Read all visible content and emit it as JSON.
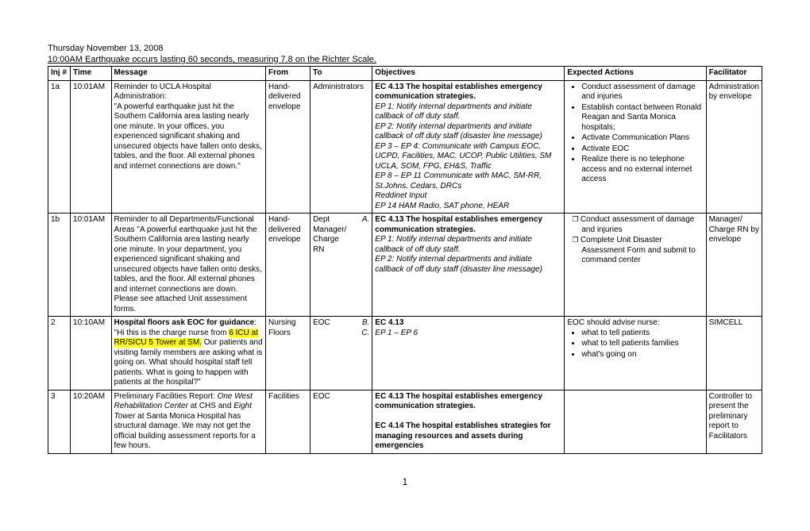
{
  "header": {
    "date_line": "Thursday November 13, 2008",
    "event_line": "10:00AM Earthquake occurs lasting 60 seconds, measuring 7.8 on the Richter Scale."
  },
  "columns": {
    "inj": "Inj #",
    "time": "Time",
    "message": "Message",
    "from": "From",
    "to": "To",
    "objectives": "Objectives",
    "actions": "Expected Actions",
    "facilitator": "Facilitator"
  },
  "rows": {
    "r1a": {
      "inj": "1a",
      "time": "10:01AM",
      "msg_line1": "Reminder to UCLA Hospital Administration:",
      "msg_body": "\"A powerful earthquake just hit the Southern California area lasting nearly one minute.  In your offices, you experienced significant shaking and unsecured objects have fallen onto desks, tables, and the floor.  All external phones and internet connections are down.\"",
      "from": "Hand-delivered envelope",
      "to": "Administrators",
      "obj_title": "EC 4.13 The hospital establishes emergency communication strategies.",
      "obj_ep1": "EP 1: Notify internal departments and initiate callback of off duty staff.",
      "obj_ep2": "EP 2: Notify internal departments and initiate callback of off duty staff (disaster line message)",
      "obj_ep3": "EP 3 – EP 4: Communicate with Campus EOC, UCPD, Facilities, MAC, UCOP, Public Utilities, SM UCLA, SOM, FPG, EH&S, Traffic",
      "obj_ep8": "EP 8 – EP 11 Communicate with MAC, SM-RR, St.Johns, Cedars, DRCs",
      "obj_reddinet": "Reddinet Input",
      "obj_ep14": "EP 14 HAM Radio, SAT phone,  HEAR",
      "act1": "Conduct assessment of damage and injuries",
      "act2": "Establish contact between Ronald Reagan and Santa Monica hospitals;",
      "act3": "Activate Communication Plans",
      "act4": "Activate EOC",
      "act5": "Realize there is no telephone access and no external internet access",
      "fac": "Administration by envelope"
    },
    "r1b": {
      "inj": "1b",
      "time": "10:01AM",
      "msg": "Reminder to all Departments/Functional Areas \"A powerful earthquake just hit the Southern California area lasting nearly one minute.  In your department, you experienced significant shaking and unsecured objects have fallen onto desks, tables, and the floor.  All external phones and internet connections are down. Please see attached Unit assessment forms.",
      "from": "Hand-delivered envelope",
      "to": "Dept Manager/ Charge RN",
      "to_letter": "A.",
      "obj_title": "EC 4.13 The hospital establishes emergency communication strategies.",
      "obj_ep1": "EP 1: Notify internal departments and initiate callback of off duty staff.",
      "obj_ep2": "EP 2: Notify internal departments and initiate callback of off duty staff (disaster line message)",
      "act1": "Conduct assessment of damage and injuries",
      "act2": "Complete Unit Disaster Assessment Form and submit to command center",
      "fac": "Manager/ Charge RN by envelope"
    },
    "r2": {
      "inj": "2",
      "time": "10:10AM",
      "msg_lead": "Hospital floors ask EOC for guidance",
      "msg_quote_a": "\"Hi this is the charge nurse from ",
      "msg_hl": "6 ICU at RR/SICU 5 Tower at SM.",
      "msg_quote_b": "  Our patients and visiting family members are asking what is going on.  What should hospital staff tell patients.  What is going to happen with patients at the hospital?\"",
      "from": "Nursing Floors",
      "to": "EOC",
      "to_letter1": "B.",
      "to_letter2": "C.",
      "obj_title": "EC 4.13",
      "obj_sub": "EP 1 – EP 6",
      "act_lead": "EOC should advise nurse:",
      "act1": "what to tell patients",
      "act2": "what to tell patients families",
      "act3": "what's going on",
      "fac": "SIMCELL"
    },
    "r3": {
      "inj": "3",
      "time": "10:20AM",
      "msg_a": "Preliminary Facilities Report: ",
      "msg_i1": "One West Rehabilitation Center",
      "msg_b": " at CHS and ",
      "msg_i2": "Eight Tower",
      "msg_c": " at Santa Monica Hospital has structural damage.  We may not get the official building assessment reports for a few hours.",
      "from": "Facilities",
      "to": "EOC",
      "obj_title1": "EC 4.13 The hospital establishes emergency communication strategies.",
      "obj_title2": "EC 4.14 The hospital establishes strategies for managing resources and assets during emergencies",
      "fac": "Controller to present the preliminary report to Facilitators"
    }
  },
  "page_number": "1"
}
